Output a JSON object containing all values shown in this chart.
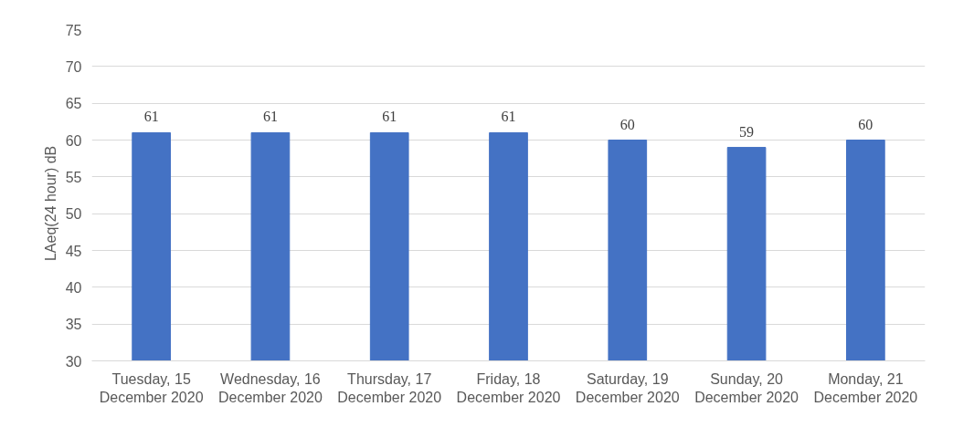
{
  "chart_data": {
    "type": "bar",
    "ylabel": "LAeq(24 hour)     dB",
    "categories": [
      "Tuesday, 15\nDecember 2020",
      "Wednesday, 16\nDecember 2020",
      "Thursday, 17\nDecember 2020",
      "Friday, 18\nDecember 2020",
      "Saturday, 19\nDecember 2020",
      "Sunday, 20\nDecember 2020",
      "Monday, 21\nDecember 2020"
    ],
    "values": [
      61,
      61,
      61,
      61,
      60,
      59,
      60
    ],
    "color": "#4472c4",
    "ylim": [
      30,
      75
    ],
    "yticks": [
      30,
      35,
      40,
      45,
      50,
      55,
      60,
      65,
      70,
      75
    ],
    "grid": "y",
    "data_labels": true
  }
}
